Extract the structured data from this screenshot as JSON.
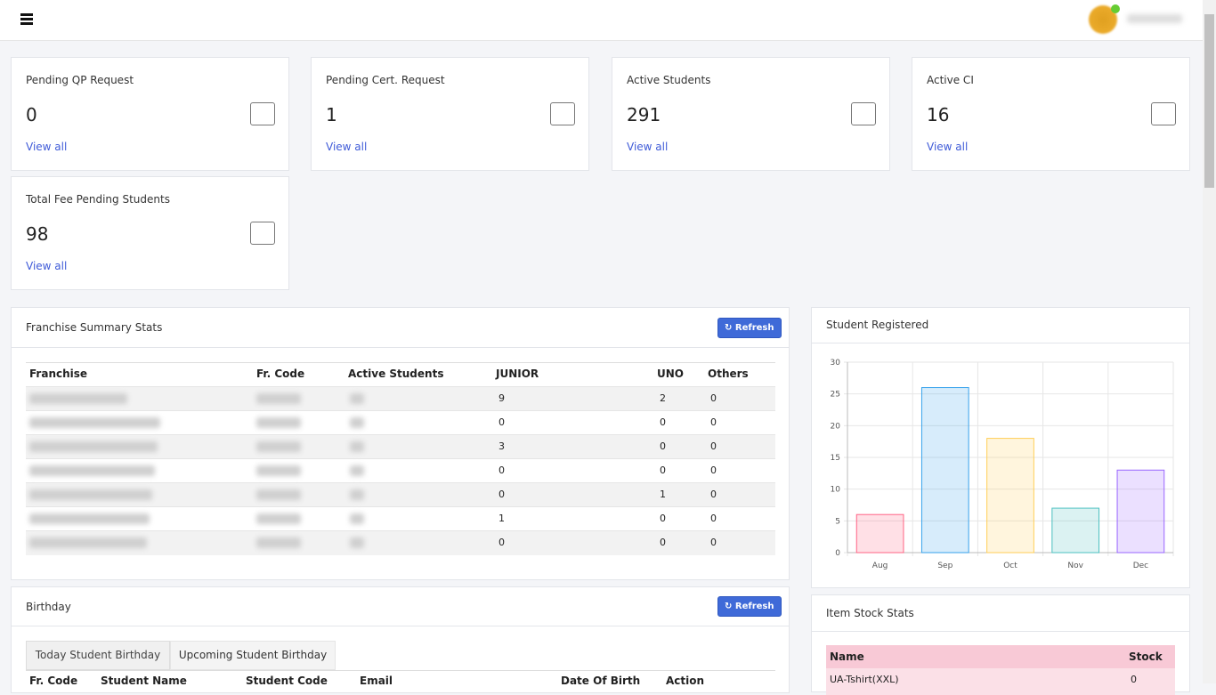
{
  "cards": [
    {
      "title": "Pending QP Request",
      "value": 0,
      "link": "View all"
    },
    {
      "title": "Pending Cert. Request",
      "value": 1,
      "link": "View all"
    },
    {
      "title": "Active Students",
      "value": 291,
      "link": "View all"
    },
    {
      "title": "Active CI",
      "value": 16,
      "link": "View all"
    },
    {
      "title": "Total Fee Pending Students",
      "value": 98,
      "link": "View all"
    }
  ],
  "franchise_summary": {
    "title": "Franchise Summary Stats",
    "button": "Refresh",
    "columns": [
      "Franchise",
      "Fr. Code",
      "Active Students",
      "JUNIOR",
      "UNO",
      "Others"
    ],
    "rows": [
      [
        9,
        2,
        0
      ],
      [
        0,
        0,
        0
      ],
      [
        3,
        0,
        0
      ],
      [
        0,
        0,
        0
      ],
      [
        0,
        1,
        0
      ],
      [
        1,
        0,
        0
      ],
      [
        0,
        0,
        0
      ]
    ]
  },
  "birthday": {
    "title": "Birthday",
    "button": "Refresh",
    "tabs": [
      "Today Student Birthday",
      "Upcoming Student Birthday"
    ],
    "columns": [
      "Fr. Code",
      "Student Name",
      "Student Code",
      "Email",
      "Date Of Birth",
      "Action"
    ]
  },
  "chart_data": {
    "type": "bar",
    "title": "Student Registered",
    "categories": [
      "Aug",
      "Sep",
      "Oct",
      "Nov",
      "Dec"
    ],
    "values": [
      6,
      26,
      18,
      7,
      13
    ],
    "colors": [
      "#ff6384",
      "#36a2eb",
      "#ffce56",
      "#4bc0c0",
      "#9966ff"
    ],
    "ylim": [
      0,
      30
    ],
    "yticks": [
      0,
      5,
      10,
      15,
      20,
      25,
      30
    ],
    "grid": true
  },
  "item_stock": {
    "title": "Item Stock Stats",
    "columns": [
      "Name",
      "Stock"
    ],
    "rows": [
      [
        "UA-Tshirt(XXL)",
        0
      ]
    ]
  }
}
